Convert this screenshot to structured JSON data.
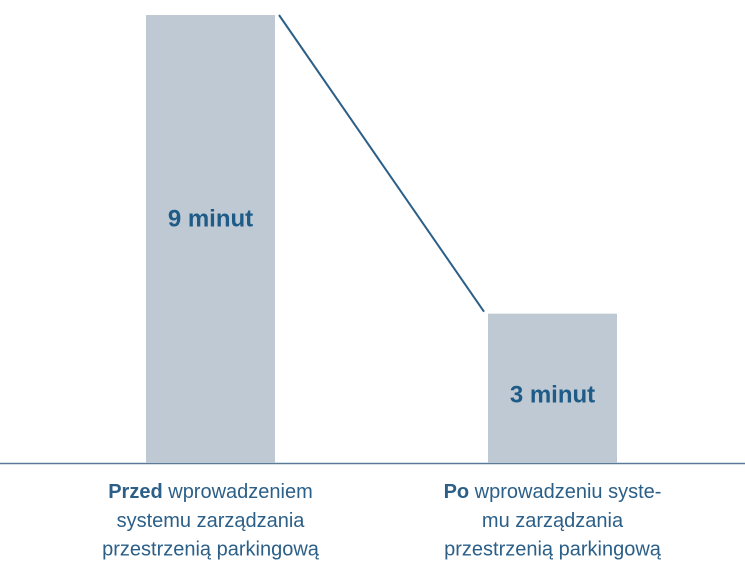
{
  "chart_data": {
    "type": "bar",
    "categories": [
      [
        "Przed wprowadzeniem",
        "systemu zarządzania",
        "przestrzenią parkingową"
      ],
      [
        "Po wprowadzeniu syste-",
        "mu zarządzania",
        "przestrzenią parkingową"
      ]
    ],
    "values": [
      9,
      3
    ],
    "value_labels": [
      "9 minut",
      "3 minut"
    ],
    "color": "#bfc9d4",
    "ylim": [
      0,
      9
    ]
  }
}
